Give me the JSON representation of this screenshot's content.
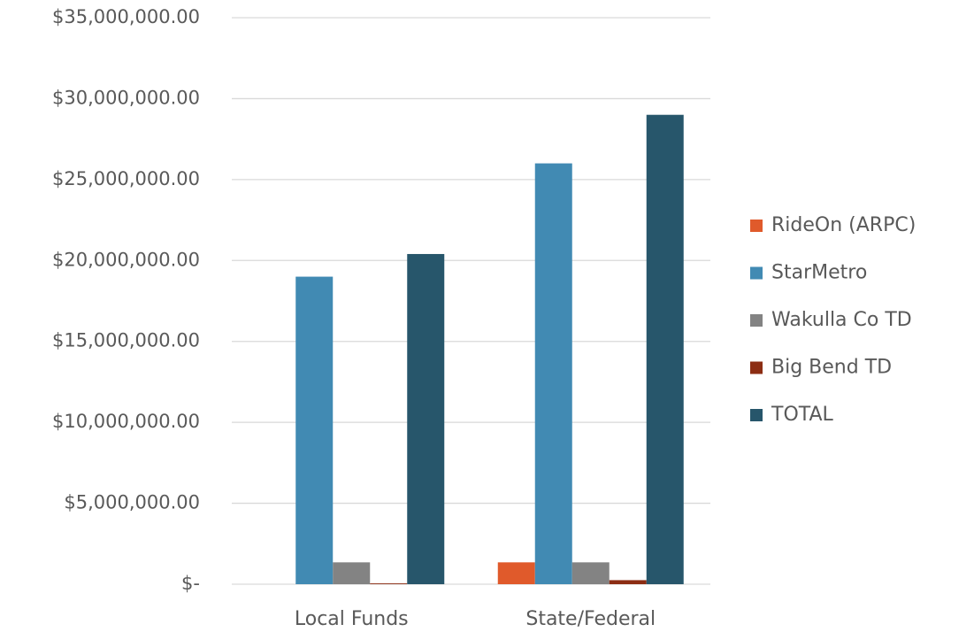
{
  "chart_data": {
    "type": "bar",
    "categories": [
      "Local Funds",
      "State/Federal"
    ],
    "series": [
      {
        "name": "RideOn (ARPC)",
        "color": "#e05a2b",
        "values": [
          0,
          1350000
        ]
      },
      {
        "name": "StarMetro",
        "color": "#418ab3",
        "values": [
          19000000,
          26000000
        ]
      },
      {
        "name": "Wakulla Co TD",
        "color": "#838383",
        "values": [
          1350000,
          1350000
        ]
      },
      {
        "name": "Big Bend TD",
        "color": "#8c2d13",
        "values": [
          50000,
          250000
        ]
      },
      {
        "name": "TOTAL",
        "color": "#27566b",
        "values": [
          20400000,
          29000000
        ]
      }
    ],
    "ylim": [
      0,
      35000000
    ],
    "yticks": [
      {
        "value": 0,
        "label": "$-"
      },
      {
        "value": 5000000,
        "label": "$5,000,000.00"
      },
      {
        "value": 10000000,
        "label": "$10,000,000.00"
      },
      {
        "value": 15000000,
        "label": "$15,000,000.00"
      },
      {
        "value": 20000000,
        "label": "$20,000,000.00"
      },
      {
        "value": 25000000,
        "label": "$25,000,000.00"
      },
      {
        "value": 30000000,
        "label": "$30,000,000.00"
      },
      {
        "value": 35000000,
        "label": "$35,000,000.00"
      }
    ],
    "grid": true,
    "legend": "right"
  }
}
